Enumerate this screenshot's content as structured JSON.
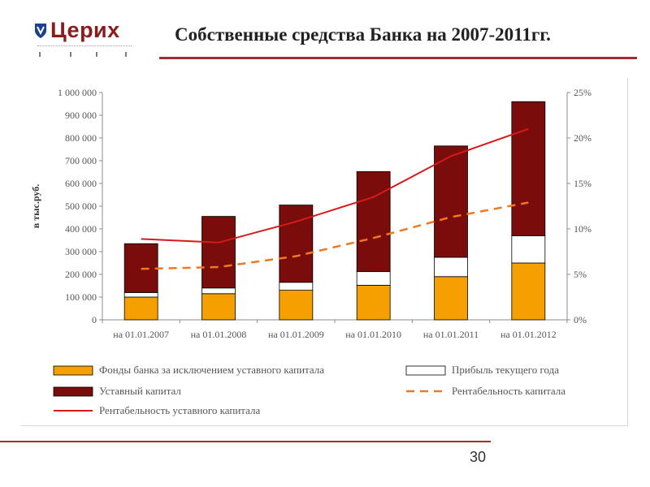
{
  "header": {
    "logo_text": "Церих",
    "title": "Собственные средства Банка на 2007-2011гг."
  },
  "footer": {
    "page_number": "30"
  },
  "colors": {
    "brand": "#8a1c1c",
    "fund_bar": "#f5a000",
    "capital_bar": "#7a0c0c",
    "profit_bar": "#ffffff",
    "capital_return_line": "#f07820",
    "authorized_return_line": "#d61a1a",
    "accent_rule": "#a52a34"
  },
  "chart_data": {
    "type": "bar",
    "stacked": true,
    "title": "",
    "xlabel": "",
    "ylabel": "в тыс.руб.",
    "categories": [
      "на 01.01.2007",
      "на 01.01.2008",
      "на 01.01.2009",
      "на 01.01.2010",
      "на 01.01.2011",
      "на 01.01.2012"
    ],
    "ylim": [
      0,
      1000000
    ],
    "y_ticks": [
      0,
      100000,
      200000,
      300000,
      400000,
      500000,
      600000,
      700000,
      800000,
      900000,
      1000000
    ],
    "y_tick_labels": [
      "0",
      "100 000",
      "200 000",
      "300 000",
      "400 000",
      "500 000",
      "600 000",
      "700 000",
      "800 000",
      "900 000",
      "1 000 000"
    ],
    "y2lim": [
      0,
      25
    ],
    "y2_ticks": [
      0,
      5,
      10,
      15,
      20,
      25
    ],
    "y2_tick_labels": [
      "0%",
      "5%",
      "10%",
      "15%",
      "20%",
      "25%"
    ],
    "series": [
      {
        "name": "Фонды банка за исключением уставного капитала",
        "kind": "bar",
        "values": [
          100000,
          115000,
          130000,
          152000,
          190000,
          250000
        ]
      },
      {
        "name": "Прибыль текущего года",
        "kind": "bar",
        "values": [
          20000,
          25000,
          35000,
          60000,
          85000,
          120000
        ]
      },
      {
        "name": "Уставный капитал",
        "kind": "bar",
        "values": [
          215000,
          315000,
          340000,
          440000,
          490000,
          590000
        ]
      },
      {
        "name": "Рентабельность капитала",
        "kind": "line",
        "axis": "right",
        "style": "dashed",
        "values": [
          5.6,
          5.8,
          7.0,
          9.0,
          11.3,
          12.9
        ]
      },
      {
        "name": "Рентабельность уставного капитала",
        "kind": "line",
        "axis": "right",
        "style": "solid",
        "values": [
          8.9,
          8.5,
          10.8,
          13.5,
          18.0,
          21.0
        ]
      }
    ],
    "legend_position": "bottom",
    "grid": false
  }
}
